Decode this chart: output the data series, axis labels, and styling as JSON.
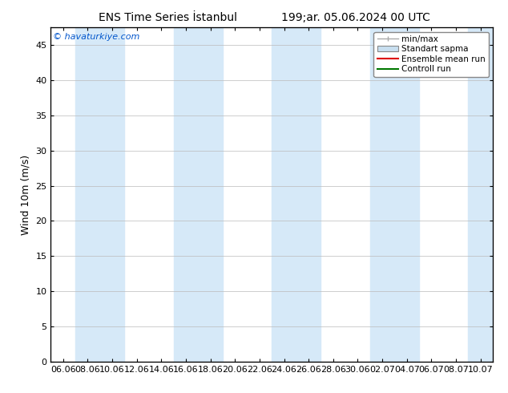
{
  "title_left": "ENS Time Series İstanbul",
  "title_right": "199;ar. 05.06.2024 00 UTC",
  "ylabel": "Wind 10m (m/s)",
  "watermark": "© havaturkiye.com",
  "ylim": [
    0,
    47.5
  ],
  "yticks": [
    0,
    5,
    10,
    15,
    20,
    25,
    30,
    35,
    40,
    45
  ],
  "x_labels": [
    "06.06",
    "08.06",
    "10.06",
    "12.06",
    "14.06",
    "16.06",
    "18.06",
    "20.06",
    "22.06",
    "24.06",
    "26.06",
    "28.06",
    "30.06",
    "02.07",
    "04.07",
    "06.07",
    "08.07",
    "10.07"
  ],
  "n_labels": 18,
  "band_color": "#d6e9f8",
  "bg_color": "#ffffff",
  "legend_items": [
    {
      "label": "min/max",
      "color": "#aaaaaa",
      "type": "errorbar"
    },
    {
      "label": "Standart sapma",
      "color": "#c8dff0",
      "type": "box"
    },
    {
      "label": "Ensemble mean run",
      "color": "#dd0000",
      "type": "line"
    },
    {
      "label": "Controll run",
      "color": "#007700",
      "type": "line"
    }
  ],
  "watermark_color": "#0055cc",
  "title_fontsize": 10,
  "ylabel_fontsize": 9,
  "tick_fontsize": 8,
  "legend_fontsize": 7.5
}
